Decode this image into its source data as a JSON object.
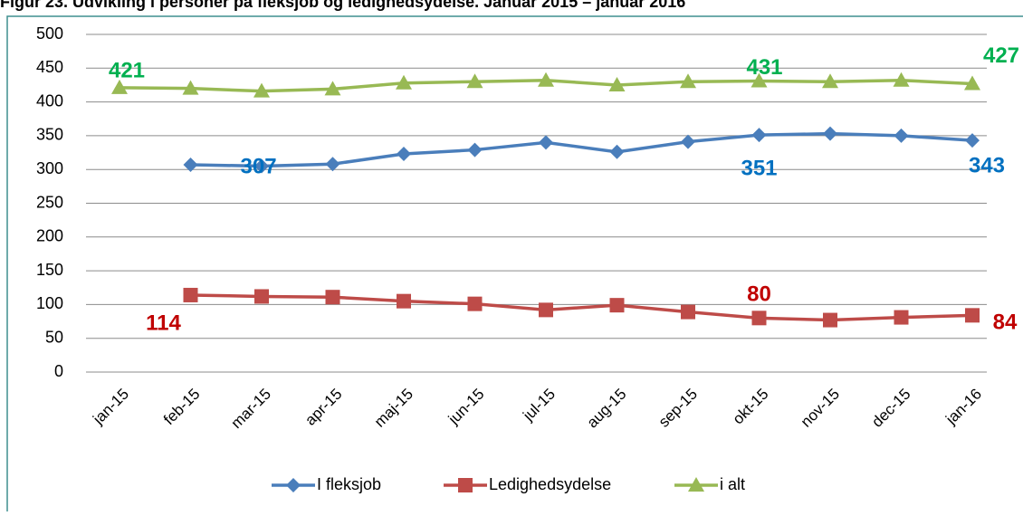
{
  "chart_data": {
    "type": "line",
    "title": "Figur 23. Udvikling i personer på fleksjob og ledighedsydelse. Januar 2015 – januar 2016",
    "categories": [
      "jan-15",
      "feb-15",
      "mar-15",
      "apr-15",
      "maj-15",
      "jun-15",
      "jul-15",
      "aug-15",
      "sep-15",
      "okt-15",
      "nov-15",
      "dec-15",
      "jan-16"
    ],
    "series": [
      {
        "name": "I fleksjob",
        "color": "#4a7ebb",
        "marker": "diamond",
        "label_color": "#0070c0",
        "data_labels": [
          1,
          9,
          12
        ],
        "values": [
          null,
          307,
          305,
          308,
          323,
          329,
          340,
          326,
          341,
          351,
          353,
          350,
          343
        ]
      },
      {
        "name": "Ledighedsydelse",
        "color": "#be4b48",
        "marker": "square",
        "label_color": "#c00000",
        "data_labels": [
          1,
          9,
          12
        ],
        "values": [
          null,
          114,
          112,
          111,
          105,
          101,
          92,
          99,
          89,
          80,
          77,
          81,
          84
        ]
      },
      {
        "name": "i alt",
        "color": "#98b954",
        "marker": "triangle",
        "label_color": "#00b050",
        "data_labels": [
          0,
          9,
          12
        ],
        "values": [
          421,
          420,
          416,
          419,
          428,
          430,
          432,
          425,
          430,
          431,
          430,
          432,
          427
        ]
      }
    ],
    "ylim": [
      0,
      500
    ],
    "yticks": [
      0,
      50,
      100,
      150,
      200,
      250,
      300,
      350,
      400,
      450,
      500
    ],
    "grid": true,
    "legend": "bottom"
  }
}
